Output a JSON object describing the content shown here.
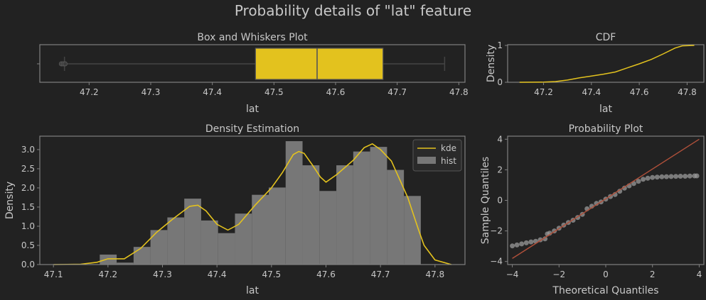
{
  "suptitle": "Probability details of \"lat\" feature",
  "colors": {
    "background": "#222222",
    "frame": "#808080",
    "accent": "#e3c21e",
    "hist": "#777777",
    "text": "#c8c8c8",
    "fit_line": "#b0503a"
  },
  "chart_data": [
    {
      "type": "box",
      "title": "Box and Whiskers Plot",
      "xlabel": "lat",
      "xlim": [
        47.12,
        47.81
      ],
      "xticks": [
        "47.2",
        "47.3",
        "47.4",
        "47.5",
        "47.6",
        "47.7",
        "47.8"
      ],
      "xtick_values": [
        47.2,
        47.3,
        47.4,
        47.5,
        47.6,
        47.7,
        47.8
      ],
      "whisker_low": 47.16,
      "q1": 47.47,
      "median": 47.57,
      "q3": 47.677,
      "whisker_high": 47.777,
      "outliers": [
        47.155,
        47.158,
        47.161
      ]
    },
    {
      "type": "line",
      "title": "CDF",
      "ylabel": "Density",
      "xlabel": "lat",
      "xlim": [
        47.05,
        47.87
      ],
      "ylim": [
        0,
        1.02
      ],
      "xticks": [
        "47.2",
        "47.4",
        "47.6",
        "47.8"
      ],
      "xtick_values": [
        47.2,
        47.4,
        47.6,
        47.8
      ],
      "yticks": [
        "0",
        "1"
      ],
      "ytick_values": [
        0,
        1
      ],
      "x": [
        47.1,
        47.2,
        47.25,
        47.3,
        47.35,
        47.4,
        47.45,
        47.5,
        47.55,
        47.6,
        47.65,
        47.7,
        47.75,
        47.78,
        47.83
      ],
      "y": [
        0.0,
        0.003,
        0.02,
        0.06,
        0.12,
        0.17,
        0.22,
        0.28,
        0.39,
        0.5,
        0.62,
        0.77,
        0.93,
        0.99,
        1.0
      ]
    },
    {
      "type": "bar",
      "title": "Density Estimation",
      "ylabel": "Density",
      "xlabel": "lat",
      "xlim": [
        47.075,
        47.855
      ],
      "ylim": [
        0,
        3.35
      ],
      "xticks": [
        "47.1",
        "47.2",
        "47.3",
        "47.4",
        "47.5",
        "47.6",
        "47.7",
        "47.8"
      ],
      "xtick_values": [
        47.1,
        47.2,
        47.3,
        47.4,
        47.5,
        47.6,
        47.7,
        47.8
      ],
      "yticks": [
        "0.0",
        "0.5",
        "1.0",
        "1.5",
        "2.0",
        "2.5",
        "3.0"
      ],
      "ytick_values": [
        0,
        0.5,
        1,
        1.5,
        2,
        2.5,
        3
      ],
      "legend": [
        "kde",
        "hist"
      ],
      "legend_position": "upper right",
      "bins": [
        {
          "x0": 47.185,
          "x1": 47.216,
          "density": 0.26
        },
        {
          "x0": 47.216,
          "x1": 47.247,
          "density": 0.05
        },
        {
          "x0": 47.247,
          "x1": 47.278,
          "density": 0.46
        },
        {
          "x0": 47.278,
          "x1": 47.309,
          "density": 0.9
        },
        {
          "x0": 47.309,
          "x1": 47.34,
          "density": 1.23
        },
        {
          "x0": 47.34,
          "x1": 47.371,
          "density": 1.72
        },
        {
          "x0": 47.371,
          "x1": 47.402,
          "density": 1.15
        },
        {
          "x0": 47.402,
          "x1": 47.433,
          "density": 0.82
        },
        {
          "x0": 47.433,
          "x1": 47.464,
          "density": 1.33
        },
        {
          "x0": 47.464,
          "x1": 47.495,
          "density": 1.82
        },
        {
          "x0": 47.495,
          "x1": 47.526,
          "density": 2.01
        },
        {
          "x0": 47.526,
          "x1": 47.557,
          "density": 3.22
        },
        {
          "x0": 47.557,
          "x1": 47.588,
          "density": 2.59
        },
        {
          "x0": 47.588,
          "x1": 47.619,
          "density": 1.92
        },
        {
          "x0": 47.619,
          "x1": 47.65,
          "density": 2.59
        },
        {
          "x0": 47.65,
          "x1": 47.681,
          "density": 2.95
        },
        {
          "x0": 47.681,
          "x1": 47.712,
          "density": 3.07
        },
        {
          "x0": 47.712,
          "x1": 47.743,
          "density": 2.47
        },
        {
          "x0": 47.743,
          "x1": 47.774,
          "density": 1.79
        }
      ],
      "kde_x": [
        47.1,
        47.15,
        47.18,
        47.2,
        47.23,
        47.26,
        47.29,
        47.32,
        47.35,
        47.365,
        47.38,
        47.4,
        47.42,
        47.44,
        47.47,
        47.5,
        47.52,
        47.54,
        47.55,
        47.56,
        47.575,
        47.59,
        47.6,
        47.62,
        47.65,
        47.67,
        47.685,
        47.7,
        47.72,
        47.75,
        47.77,
        47.78,
        47.8,
        47.83
      ],
      "kde_y": [
        0.0,
        0.01,
        0.06,
        0.15,
        0.15,
        0.42,
        0.85,
        1.2,
        1.52,
        1.55,
        1.4,
        1.05,
        0.9,
        1.05,
        1.55,
        2.0,
        2.4,
        2.87,
        2.95,
        2.9,
        2.6,
        2.28,
        2.15,
        2.35,
        2.72,
        3.05,
        3.15,
        3.0,
        2.7,
        1.75,
        0.9,
        0.5,
        0.12,
        0.0
      ]
    },
    {
      "type": "scatter",
      "title": "Probability Plot",
      "ylabel": "Sample Quantiles",
      "xlabel": "Theoretical Quantiles",
      "xlim": [
        -4.2,
        4.2
      ],
      "ylim": [
        -4.2,
        4.2
      ],
      "xticks": [
        "−4",
        "−2",
        "0",
        "2",
        "4"
      ],
      "xtick_values": [
        -4,
        -2,
        0,
        2,
        4
      ],
      "yticks": [
        "−4",
        "−2",
        "0",
        "2",
        "4"
      ],
      "ytick_values": [
        -4,
        -2,
        0,
        2,
        4
      ],
      "fit_line": {
        "x": [
          -4,
          4
        ],
        "y": [
          -3.8,
          4.0
        ]
      },
      "points": {
        "x": [
          -4.0,
          -3.8,
          -3.6,
          -3.4,
          -3.2,
          -3.0,
          -2.8,
          -2.6,
          -2.5,
          -2.4,
          -2.2,
          -2.0,
          -1.8,
          -1.6,
          -1.4,
          -1.2,
          -1.0,
          -0.8,
          -0.6,
          -0.4,
          -0.2,
          0.0,
          0.2,
          0.4,
          0.6,
          0.8,
          1.0,
          1.2,
          1.4,
          1.6,
          1.8,
          2.0,
          2.2,
          2.4,
          2.6,
          2.8,
          3.0,
          3.2,
          3.4,
          3.6,
          3.8,
          3.9
        ],
        "y": [
          -2.98,
          -2.92,
          -2.85,
          -2.78,
          -2.72,
          -2.68,
          -2.58,
          -2.52,
          -2.2,
          -2.15,
          -2.0,
          -1.82,
          -1.62,
          -1.45,
          -1.3,
          -1.12,
          -0.92,
          -0.55,
          -0.38,
          -0.2,
          -0.1,
          0.08,
          0.25,
          0.38,
          0.6,
          0.8,
          0.95,
          1.1,
          1.25,
          1.38,
          1.45,
          1.5,
          1.52,
          1.54,
          1.55,
          1.56,
          1.57,
          1.58,
          1.58,
          1.59,
          1.6,
          1.6
        ]
      }
    }
  ]
}
